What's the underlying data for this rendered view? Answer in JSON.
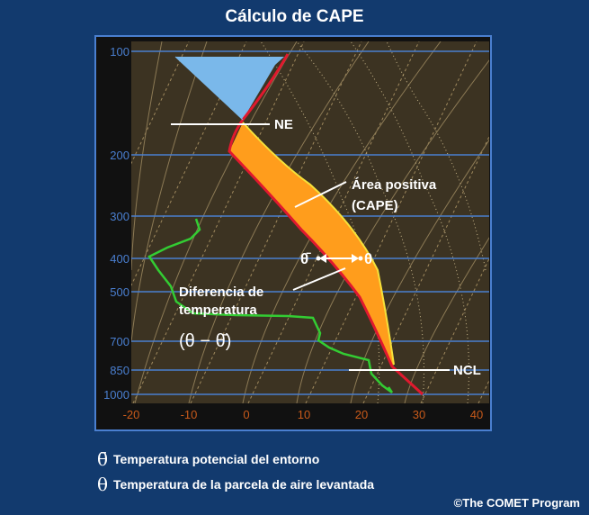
{
  "title": "Cálculo de CAPE",
  "y_ticks": [
    "100",
    "200",
    "300",
    "400",
    "500",
    "700",
    "850",
    "1000"
  ],
  "x_ticks": [
    "-20",
    "-10",
    "0",
    "10",
    "20",
    "30",
    "40"
  ],
  "labels": {
    "ne": "NE",
    "positive_area": "Área positiva",
    "positive_area_sub": "(CAPE)",
    "theta_env": "θ̄",
    "theta_parcel": "θ",
    "temp_diff_line1": "Diferencia de",
    "temp_diff_line2": "temperatura",
    "temp_diff_formula": "(θ − θ̄)",
    "ncl": "NCL"
  },
  "legend": [
    {
      "symbol": "θ̄",
      "text": "Temperatura potencial del entorno"
    },
    {
      "symbol": "θ",
      "text": "Temperatura de la parcela de aire levantada"
    }
  ],
  "credit": "©The COMET Program",
  "colors": {
    "background": "#123a6e",
    "plot_bg": "#3c3322",
    "cape_fill": "#ff9d1c",
    "ne_fill": "#7ab8ea",
    "env_temp": "#e0192e",
    "dewpoint": "#33cc33",
    "parcel": "#f5e13a",
    "isobar": "#4a7fd0"
  }
}
